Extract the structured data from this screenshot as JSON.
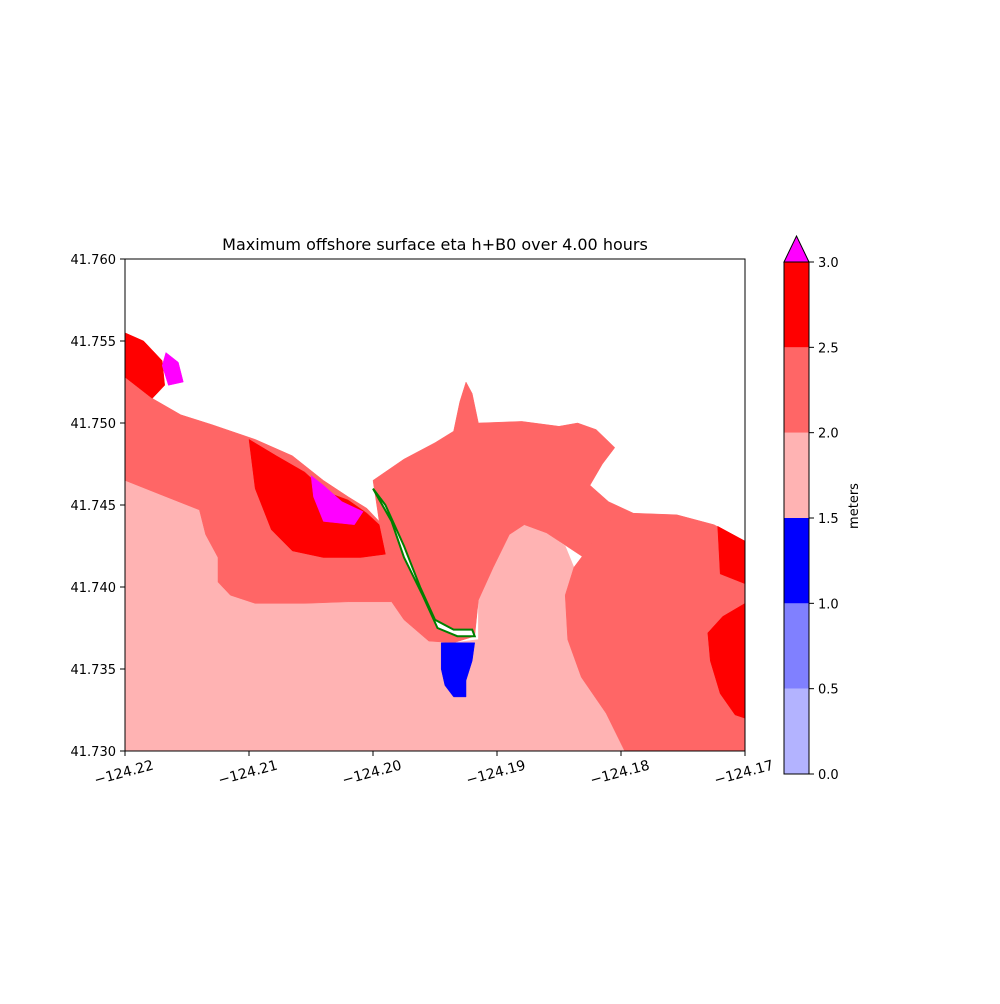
{
  "chart_data": {
    "type": "heatmap",
    "title": "Maximum offshore surface eta h+B0 over 4.00 hours",
    "xlabel": "",
    "ylabel": "",
    "xlim": [
      -124.22,
      -124.17
    ],
    "ylim": [
      41.73,
      41.76
    ],
    "x_ticks": [
      {
        "value": -124.22,
        "label": "−124.22"
      },
      {
        "value": -124.21,
        "label": "−124.21"
      },
      {
        "value": -124.2,
        "label": "−124.20"
      },
      {
        "value": -124.19,
        "label": "−124.19"
      },
      {
        "value": -124.18,
        "label": "−124.18"
      },
      {
        "value": -124.17,
        "label": "−124.17"
      }
    ],
    "y_ticks": [
      {
        "value": 41.73,
        "label": "41.730"
      },
      {
        "value": 41.735,
        "label": "41.735"
      },
      {
        "value": 41.74,
        "label": "41.740"
      },
      {
        "value": 41.745,
        "label": "41.745"
      },
      {
        "value": 41.75,
        "label": "41.750"
      },
      {
        "value": 41.755,
        "label": "41.755"
      },
      {
        "value": 41.76,
        "label": "41.760"
      }
    ],
    "colorbar": {
      "label": "meters",
      "extend": "max",
      "over_color": "#ff00ff",
      "levels": [
        {
          "min": 0.0,
          "max": 0.5,
          "color": "#b3b3ff"
        },
        {
          "min": 0.5,
          "max": 1.0,
          "color": "#8080ff"
        },
        {
          "min": 1.0,
          "max": 1.5,
          "color": "#0000ff"
        },
        {
          "min": 1.5,
          "max": 2.0,
          "color": "#ffb3b3"
        },
        {
          "min": 2.0,
          "max": 2.5,
          "color": "#ff6666"
        },
        {
          "min": 2.5,
          "max": 3.0,
          "color": "#ff0000"
        }
      ],
      "ticks": [
        {
          "value": 0.0,
          "label": "0.0"
        },
        {
          "value": 0.5,
          "label": "0.5"
        },
        {
          "value": 1.0,
          "label": "1.0"
        },
        {
          "value": 1.5,
          "label": "1.5"
        },
        {
          "value": 2.0,
          "label": "2.0"
        },
        {
          "value": 2.5,
          "label": "2.5"
        },
        {
          "value": 3.0,
          "label": "3.0"
        }
      ]
    },
    "shoreline_color": "#008000",
    "regions": [
      {
        "name": "offshore-band-1.5-2.0",
        "level": 1.75,
        "color": "#ffb3b3",
        "lonlat": [
          [
            -124.22,
            41.7465
          ],
          [
            -124.217,
            41.7456
          ],
          [
            -124.214,
            41.7447
          ],
          [
            -124.2135,
            41.7432
          ],
          [
            -124.2125,
            41.7418
          ],
          [
            -124.2125,
            41.7403
          ],
          [
            -124.2115,
            41.7395
          ],
          [
            -124.2095,
            41.739
          ],
          [
            -124.2055,
            41.739
          ],
          [
            -124.202,
            41.7391
          ],
          [
            -124.1985,
            41.7391
          ],
          [
            -124.1975,
            41.738
          ],
          [
            -124.1955,
            41.7367
          ],
          [
            -124.1935,
            41.7366
          ],
          [
            -124.1915,
            41.7368
          ],
          [
            -124.1915,
            41.7392
          ],
          [
            -124.1903,
            41.7412
          ],
          [
            -124.189,
            41.7432
          ],
          [
            -124.1878,
            41.7438
          ],
          [
            -124.186,
            41.7433
          ],
          [
            -124.1845,
            41.7425
          ],
          [
            -124.1838,
            41.7412
          ],
          [
            -124.184,
            41.7405
          ],
          [
            -124.1845,
            41.7395
          ],
          [
            -124.1843,
            41.7368
          ],
          [
            -124.1832,
            41.7345
          ],
          [
            -124.1812,
            41.7323
          ],
          [
            -124.1797,
            41.73
          ],
          [
            -124.22,
            41.73
          ]
        ]
      },
      {
        "name": "offshore-band-2.0-2.5-west",
        "level": 2.25,
        "color": "#ff6666",
        "lonlat": [
          [
            -124.22,
            41.753
          ],
          [
            -124.2178,
            41.7515
          ],
          [
            -124.2155,
            41.7505
          ],
          [
            -124.213,
            41.7499
          ],
          [
            -124.2095,
            41.749
          ],
          [
            -124.2065,
            41.748
          ],
          [
            -124.204,
            41.7465
          ],
          [
            -124.202,
            41.7455
          ],
          [
            -124.2005,
            41.7448
          ],
          [
            -124.1995,
            41.744
          ],
          [
            -124.1985,
            41.742
          ],
          [
            -124.1975,
            41.7405
          ],
          [
            -124.1955,
            41.7382
          ],
          [
            -124.1935,
            41.7366
          ],
          [
            -124.1955,
            41.7367
          ],
          [
            -124.1975,
            41.738
          ],
          [
            -124.1985,
            41.7391
          ],
          [
            -124.202,
            41.7391
          ],
          [
            -124.2055,
            41.739
          ],
          [
            -124.2095,
            41.739
          ],
          [
            -124.2115,
            41.7395
          ],
          [
            -124.2125,
            41.7403
          ],
          [
            -124.2125,
            41.7418
          ],
          [
            -124.2135,
            41.7432
          ],
          [
            -124.214,
            41.7447
          ],
          [
            -124.217,
            41.7456
          ],
          [
            -124.22,
            41.7465
          ]
        ]
      },
      {
        "name": "estuary-band-2.0-2.5",
        "level": 2.25,
        "color": "#ff6666",
        "lonlat": [
          [
            -124.2,
            41.7465
          ],
          [
            -124.1975,
            41.7478
          ],
          [
            -124.195,
            41.7488
          ],
          [
            -124.1935,
            41.7495
          ],
          [
            -124.193,
            41.7513
          ],
          [
            -124.1925,
            41.7525
          ],
          [
            -124.192,
            41.7518
          ],
          [
            -124.1915,
            41.75
          ],
          [
            -124.188,
            41.7501
          ],
          [
            -124.185,
            41.7498
          ],
          [
            -124.1835,
            41.75
          ],
          [
            -124.182,
            41.7496
          ],
          [
            -124.1805,
            41.7485
          ],
          [
            -124.1815,
            41.7475
          ],
          [
            -124.1825,
            41.7462
          ],
          [
            -124.181,
            41.7452
          ],
          [
            -124.179,
            41.7445
          ],
          [
            -124.181,
            41.7432
          ],
          [
            -124.183,
            41.7418
          ],
          [
            -124.186,
            41.7433
          ],
          [
            -124.1878,
            41.7438
          ],
          [
            -124.189,
            41.7432
          ],
          [
            -124.1903,
            41.7412
          ],
          [
            -124.1915,
            41.7392
          ],
          [
            -124.1918,
            41.737
          ],
          [
            -124.1935,
            41.7366
          ],
          [
            -124.1955,
            41.7382
          ],
          [
            -124.1975,
            41.7405
          ],
          [
            -124.1985,
            41.742
          ],
          [
            -124.1995,
            41.744
          ]
        ]
      },
      {
        "name": "offshore-band-2.0-2.5-east",
        "level": 2.25,
        "color": "#ff6666",
        "lonlat": [
          [
            -124.1815,
            41.7439
          ],
          [
            -124.179,
            41.7445
          ],
          [
            -124.1755,
            41.7444
          ],
          [
            -124.1725,
            41.7438
          ],
          [
            -124.17,
            41.7428
          ],
          [
            -124.17,
            41.73
          ],
          [
            -124.1797,
            41.73
          ],
          [
            -124.1812,
            41.7323
          ],
          [
            -124.1832,
            41.7345
          ],
          [
            -124.1843,
            41.7368
          ],
          [
            -124.1845,
            41.7395
          ],
          [
            -124.1838,
            41.7412
          ],
          [
            -124.1825,
            41.7425
          ]
        ]
      },
      {
        "name": "high-band-2.5-3.0-northwest",
        "level": 2.75,
        "color": "#ff0000",
        "lonlat": [
          [
            -124.22,
            41.7555
          ],
          [
            -124.2185,
            41.755
          ],
          [
            -124.217,
            41.7538
          ],
          [
            -124.2168,
            41.7523
          ],
          [
            -124.2178,
            41.7515
          ],
          [
            -124.22,
            41.7528
          ]
        ]
      },
      {
        "name": "high-band-2.5-3.0-central",
        "level": 2.75,
        "color": "#ff0000",
        "lonlat": [
          [
            -124.21,
            41.749
          ],
          [
            -124.2078,
            41.748
          ],
          [
            -124.2055,
            41.747
          ],
          [
            -124.2038,
            41.7458
          ],
          [
            -124.202,
            41.7453
          ],
          [
            -124.2005,
            41.7445
          ],
          [
            -124.1995,
            41.7438
          ],
          [
            -124.199,
            41.742
          ],
          [
            -124.201,
            41.7418
          ],
          [
            -124.204,
            41.7418
          ],
          [
            -124.2065,
            41.7422
          ],
          [
            -124.2082,
            41.7435
          ],
          [
            -124.2095,
            41.746
          ]
        ]
      },
      {
        "name": "high-band-2.5-3.0-east-upper",
        "level": 2.75,
        "color": "#ff0000",
        "lonlat": [
          [
            -124.1722,
            41.7437
          ],
          [
            -124.17,
            41.7428
          ],
          [
            -124.17,
            41.7402
          ],
          [
            -124.172,
            41.7408
          ]
        ]
      },
      {
        "name": "high-band-2.5-3.0-east-lower",
        "level": 2.75,
        "color": "#ff0000",
        "lonlat": [
          [
            -124.17,
            41.739
          ],
          [
            -124.1718,
            41.7382
          ],
          [
            -124.173,
            41.7372
          ],
          [
            -124.1728,
            41.7355
          ],
          [
            -124.172,
            41.7335
          ],
          [
            -124.1708,
            41.7322
          ],
          [
            -124.17,
            41.732
          ]
        ]
      },
      {
        "name": "over-3.0-northwest",
        "level": 3.1,
        "color": "#ff00ff",
        "lonlat": [
          [
            -124.2167,
            41.7543
          ],
          [
            -124.2157,
            41.7537
          ],
          [
            -124.2153,
            41.7525
          ],
          [
            -124.2165,
            41.7523
          ],
          [
            -124.217,
            41.7535
          ]
        ]
      },
      {
        "name": "over-3.0-central",
        "level": 3.1,
        "color": "#ff00ff",
        "lonlat": [
          [
            -124.205,
            41.7468
          ],
          [
            -124.204,
            41.7462
          ],
          [
            -124.2025,
            41.7452
          ],
          [
            -124.2008,
            41.7446
          ],
          [
            -124.2015,
            41.7438
          ],
          [
            -124.204,
            41.744
          ],
          [
            -124.2048,
            41.7455
          ]
        ]
      },
      {
        "name": "band-1.0-1.5-channel",
        "level": 1.25,
        "color": "#0000ff",
        "lonlat": [
          [
            -124.1945,
            41.7366
          ],
          [
            -124.1918,
            41.7366
          ],
          [
            -124.192,
            41.7355
          ],
          [
            -124.1925,
            41.7343
          ],
          [
            -124.1925,
            41.7333
          ],
          [
            -124.1935,
            41.7333
          ],
          [
            -124.1942,
            41.734
          ],
          [
            -124.1945,
            41.735
          ]
        ]
      },
      {
        "name": "land-spit",
        "level": null,
        "color": "#ffffff",
        "lonlat": [
          [
            -124.2,
            41.746
          ],
          [
            -124.1985,
            41.744
          ],
          [
            -124.1975,
            41.7418
          ],
          [
            -124.196,
            41.7395
          ],
          [
            -124.1948,
            41.7375
          ],
          [
            -124.1932,
            41.737
          ],
          [
            -124.1918,
            41.737
          ],
          [
            -124.192,
            41.7374
          ],
          [
            -124.1935,
            41.7374
          ],
          [
            -124.195,
            41.738
          ],
          [
            -124.1962,
            41.74
          ],
          [
            -124.1975,
            41.7425
          ],
          [
            -124.199,
            41.745
          ]
        ]
      }
    ],
    "annotations": []
  }
}
